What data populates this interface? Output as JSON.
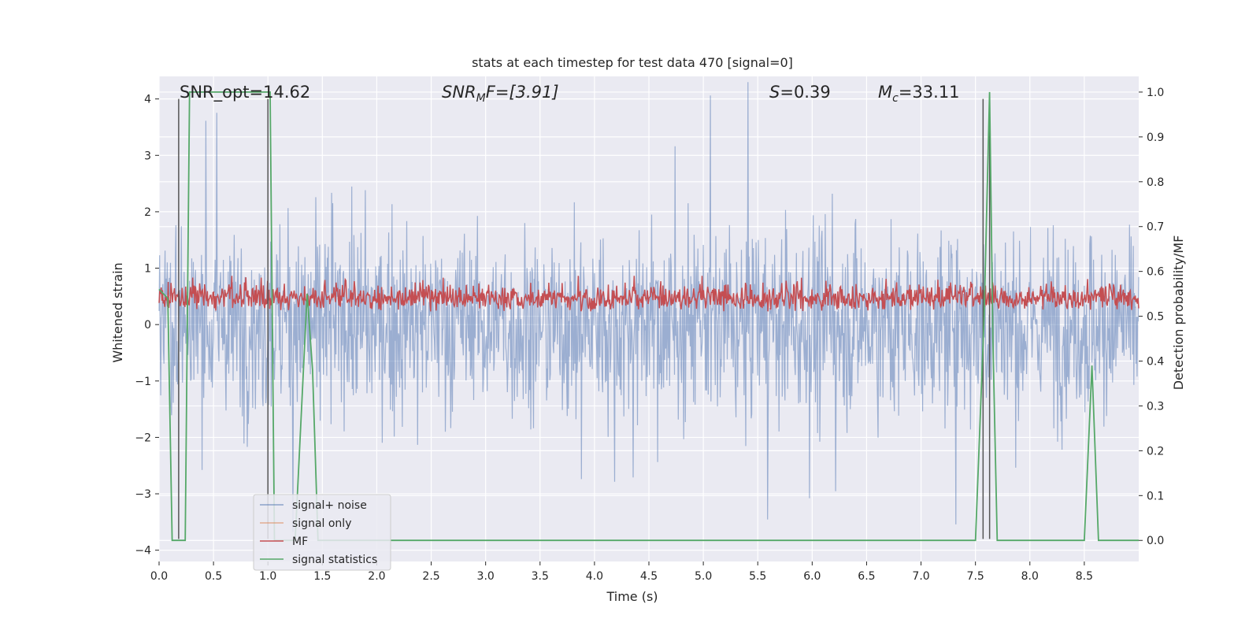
{
  "chart_data": {
    "type": "line",
    "title": "stats at each timestep for test data 470 [signal=0]",
    "xlabel": "Time (s)",
    "ylabel": "Whitened strain",
    "ylabel_right": "Detection probability/MF",
    "xlim": [
      0.0,
      9.0
    ],
    "ylim": [
      -4.2,
      4.4
    ],
    "ylim_right": [
      -0.047,
      1.035
    ],
    "xticks": [
      "0.0",
      "0.5",
      "1.0",
      "1.5",
      "2.0",
      "2.5",
      "3.0",
      "3.5",
      "4.0",
      "4.5",
      "5.0",
      "5.5",
      "6.0",
      "6.5",
      "7.0",
      "7.5",
      "8.0",
      "8.5"
    ],
    "xtick_values": [
      0,
      0.5,
      1,
      1.5,
      2,
      2.5,
      3,
      3.5,
      4,
      4.5,
      5,
      5.5,
      6,
      6.5,
      7,
      7.5,
      8,
      8.5
    ],
    "yticks": [
      "4",
      "3",
      "2",
      "1",
      "0",
      "−1",
      "−2",
      "−3",
      "−4"
    ],
    "ytick_values": [
      4,
      3,
      2,
      1,
      0,
      -1,
      -2,
      -3,
      -4
    ],
    "yticks_right": [
      "1.0",
      "0.9",
      "0.8",
      "0.7",
      "0.6",
      "0.5",
      "0.4",
      "0.3",
      "0.2",
      "0.1",
      "0.0"
    ],
    "ytick_right_values": [
      1.0,
      0.9,
      0.8,
      0.7,
      0.6,
      0.5,
      0.4,
      0.3,
      0.2,
      0.1,
      0.0
    ],
    "grid": true,
    "legend_position": "lower-left",
    "annotations": {
      "snr_opt": "SNR_opt=14.62",
      "snr_mf_main": "SNR",
      "snr_mf_sub": "M",
      "snr_mf_rest": "F=[3.91]",
      "s_main": "S",
      "s_rest": "=0.39",
      "mc_main": "M",
      "mc_sub": "c",
      "mc_rest": "=33.11"
    },
    "series": [
      {
        "name": "signal+ noise",
        "color": "#4c72b0",
        "axis": "left",
        "description_band": [
          -1.6,
          1.6
        ]
      },
      {
        "name": "signal only",
        "color": "#dd8452",
        "axis": "left",
        "values": []
      },
      {
        "name": "MF",
        "color": "#c44e52",
        "axis": "right",
        "description_band": [
          0.5,
          0.6
        ]
      },
      {
        "name": "signal statistics",
        "color": "#55a868",
        "axis": "right",
        "x": [
          0.0,
          0.08,
          0.12,
          0.18,
          0.24,
          0.28,
          0.98,
          1.02,
          1.06,
          1.25,
          1.36,
          1.41,
          1.46,
          1.6,
          2.5,
          5.0,
          7.45,
          7.5,
          7.58,
          7.63,
          7.66,
          7.7,
          8.5,
          8.57,
          8.63,
          8.68,
          9.0
        ],
        "y": [
          0.56,
          0.54,
          0.0,
          0.0,
          0.0,
          1.0,
          1.0,
          1.0,
          0.0,
          0.0,
          0.55,
          0.38,
          0.0,
          0.0,
          0.0,
          0.0,
          0.0,
          0.0,
          0.5,
          1.0,
          0.45,
          0.0,
          0.0,
          0.39,
          0.0,
          0.0,
          0.0
        ]
      }
    ],
    "vertical_lines": [
      0.18,
      1.0,
      7.57,
      7.63
    ],
    "vertical_line_color": "#555555"
  }
}
